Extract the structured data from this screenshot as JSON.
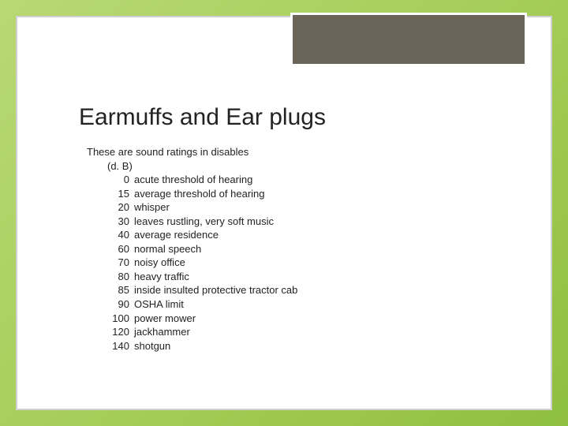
{
  "title": "Earmuffs and Ear plugs",
  "intro": "These are sound ratings in disables",
  "unit_line": "(d. B)",
  "ratings": [
    {
      "db": "0",
      "desc": "acute threshold of hearing"
    },
    {
      "db": "15",
      "desc": "average threshold of hearing"
    },
    {
      "db": "20",
      "desc": "whisper"
    },
    {
      "db": "30",
      "desc": "leaves rustling, very soft music"
    },
    {
      "db": "40",
      "desc": "average residence"
    },
    {
      "db": "60",
      "desc": "normal speech"
    },
    {
      "db": "70",
      "desc": "noisy office"
    },
    {
      "db": "80",
      "desc": "heavy traffic"
    },
    {
      "db": "85",
      "desc": "inside insulted protective tractor cab"
    },
    {
      "db": "90",
      "desc": "OSHA limit"
    },
    {
      "db": "100",
      "desc": "power mower"
    },
    {
      "db": "120",
      "desc": "jackhammer"
    },
    {
      "db": "140",
      "desc": "shotgun"
    }
  ],
  "colors": {
    "background_gradient_start": "#b8d874",
    "background_gradient_end": "#8fbf3f",
    "frame_bg": "#ffffff",
    "frame_border": "#cfcfcf",
    "corner_box": "#6b6559",
    "text": "#222222"
  }
}
